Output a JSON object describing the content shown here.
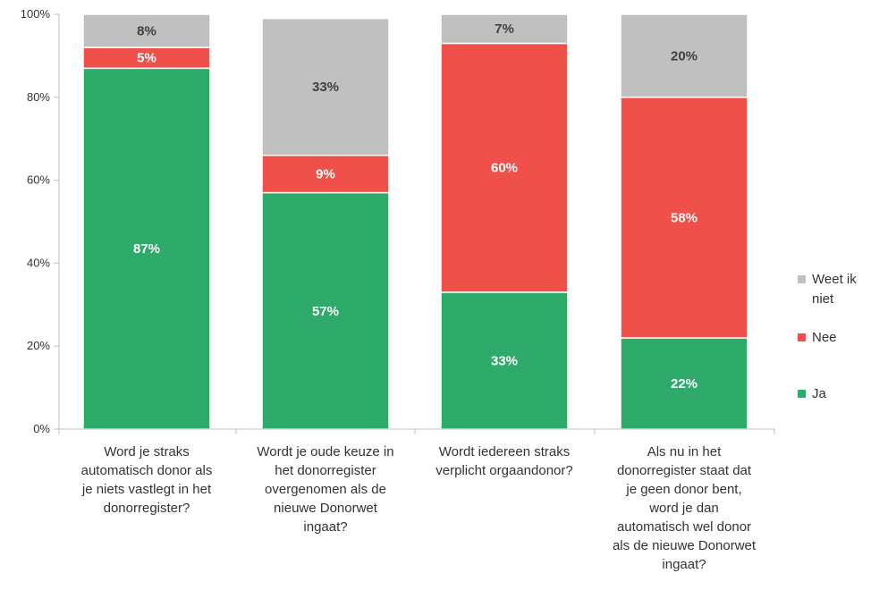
{
  "chart_data": {
    "type": "bar",
    "stacked": true,
    "title": "",
    "xlabel": "",
    "ylabel": "",
    "ylim": [
      0,
      100
    ],
    "y_ticks": [
      "0%",
      "20%",
      "40%",
      "60%",
      "80%",
      "100%"
    ],
    "legend_position": "right",
    "categories": [
      [
        "Word je straks",
        "automatisch donor als",
        "je niets vastlegt in het",
        "donorregister?"
      ],
      [
        "Wordt je oude keuze in",
        "het donorregister",
        "overgenomen als de",
        "nieuwe Donorwet",
        "ingaat?"
      ],
      [
        "Wordt iedereen straks",
        "verplicht orgaandonor?"
      ],
      [
        "Als nu in het",
        "donorregister staat dat",
        "je geen donor bent,",
        "word je dan",
        "automatisch wel donor",
        "als de nieuwe Donorwet",
        "ingaat?"
      ]
    ],
    "series": [
      {
        "name": "Ja",
        "color": "#2eaa6b",
        "label_color": "#ffffff",
        "values": [
          87,
          57,
          33,
          22
        ],
        "labels": [
          "87%",
          "57%",
          "33%",
          "22%"
        ]
      },
      {
        "name": "Nee",
        "color": "#f0504a",
        "label_color": "#ffffff",
        "values": [
          5,
          9,
          60,
          58
        ],
        "labels": [
          "5%",
          "9%",
          "60%",
          "58%"
        ]
      },
      {
        "name": "Weet ik niet",
        "color": "#c0c0c0",
        "label_color": "#404040",
        "values": [
          8,
          33,
          7,
          20
        ],
        "labels": [
          "8%",
          "33%",
          "7%",
          "20%"
        ]
      }
    ],
    "legend_lines": [
      [
        "Weet ik",
        "niet"
      ],
      [
        "Nee"
      ],
      [
        "Ja"
      ]
    ]
  }
}
